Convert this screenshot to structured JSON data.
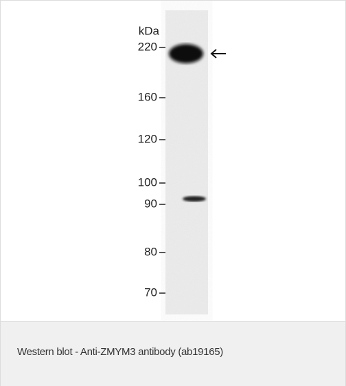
{
  "figure": {
    "unit": "kDa",
    "markers": [
      "220",
      "160",
      "120",
      "100",
      "90",
      "80",
      "70"
    ],
    "caption": "Western blot - Anti-ZMYM3 antibody (ab19165)"
  }
}
